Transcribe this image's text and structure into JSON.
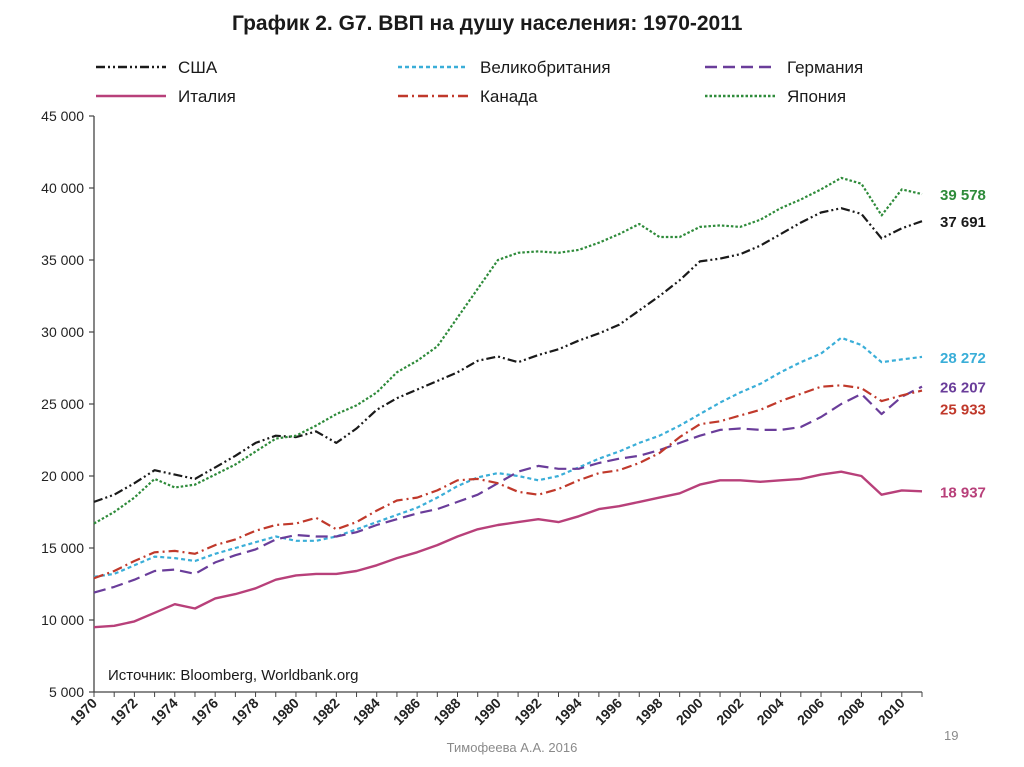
{
  "chart_data": {
    "type": "line",
    "title": "График 2. G7. ВВП на душу населения: 1970-2011",
    "xlabel": "",
    "ylabel": "",
    "xlim": [
      1970,
      2011
    ],
    "ylim": [
      5000,
      45000
    ],
    "y_ticks": [
      {
        "value": 5000,
        "label": "5 000"
      },
      {
        "value": 10000,
        "label": "10 000"
      },
      {
        "value": 15000,
        "label": "15 000"
      },
      {
        "value": 20000,
        "label": "20 000"
      },
      {
        "value": 25000,
        "label": "25 000"
      },
      {
        "value": 30000,
        "label": "30 000"
      },
      {
        "value": 35000,
        "label": "35 000"
      },
      {
        "value": 40000,
        "label": "40 000"
      },
      {
        "value": 45000,
        "label": "45 000"
      }
    ],
    "x_ticks": [
      "1970",
      "1972",
      "1974",
      "1976",
      "1978",
      "1980",
      "1982",
      "1984",
      "1986",
      "1988",
      "1990",
      "1992",
      "1994",
      "1996",
      "1998",
      "2000",
      "2002",
      "2004",
      "2006",
      "2008",
      "2010"
    ],
    "x": [
      1970,
      1971,
      1972,
      1973,
      1974,
      1975,
      1976,
      1977,
      1978,
      1979,
      1980,
      1981,
      1982,
      1983,
      1984,
      1985,
      1986,
      1987,
      1988,
      1989,
      1990,
      1991,
      1992,
      1993,
      1994,
      1995,
      1996,
      1997,
      1998,
      1999,
      2000,
      2001,
      2002,
      2003,
      2004,
      2005,
      2006,
      2007,
      2008,
      2009,
      2010,
      2011
    ],
    "legend_placement": "top",
    "grid": false,
    "source_note": "Источник: Bloomberg, Worldbank.org",
    "series": [
      {
        "name": "США",
        "color": "#1a1a1a",
        "dash": "dashdotdot",
        "end_label": "37 691",
        "values": [
          18200,
          18700,
          19500,
          20400,
          20100,
          19800,
          20600,
          21400,
          22300,
          22800,
          22700,
          23100,
          22300,
          23300,
          24600,
          25400,
          26000,
          26600,
          27200,
          28000,
          28300,
          27900,
          28400,
          28800,
          29400,
          29900,
          30500,
          31500,
          32500,
          33600,
          34900,
          35100,
          35400,
          36000,
          36800,
          37600,
          38300,
          38600,
          38200,
          36500,
          37200,
          37691
        ]
      },
      {
        "name": "Великобритания",
        "color": "#3aaed8",
        "dash": "dotted",
        "end_label": "28 272",
        "values": [
          13000,
          13200,
          13800,
          14400,
          14300,
          14100,
          14600,
          15000,
          15400,
          15800,
          15500,
          15500,
          15800,
          16300,
          16800,
          17300,
          17800,
          18500,
          19300,
          19900,
          20200,
          20000,
          19700,
          20000,
          20600,
          21200,
          21700,
          22300,
          22800,
          23500,
          24300,
          25100,
          25800,
          26400,
          27200,
          27900,
          28500,
          29600,
          29100,
          27900,
          28100,
          28272
        ]
      },
      {
        "name": "Германия",
        "color": "#6a3d9a",
        "dash": "longdash",
        "end_label": "26 207",
        "values": [
          11900,
          12300,
          12800,
          13400,
          13500,
          13200,
          14000,
          14500,
          14900,
          15600,
          15900,
          15800,
          15800,
          16100,
          16600,
          17000,
          17400,
          17700,
          18200,
          18700,
          19500,
          20300,
          20700,
          20500,
          20500,
          20900,
          21200,
          21400,
          21800,
          22300,
          22800,
          23200,
          23300,
          23200,
          23200,
          23400,
          24100,
          25000,
          25700,
          24300,
          25500,
          26207
        ]
      },
      {
        "name": "Италия",
        "color": "#b8407a",
        "dash": "solid",
        "end_label": "18 937",
        "values": [
          9500,
          9600,
          9900,
          10500,
          11100,
          10800,
          11500,
          11800,
          12200,
          12800,
          13100,
          13200,
          13200,
          13400,
          13800,
          14300,
          14700,
          15200,
          15800,
          16300,
          16600,
          16800,
          17000,
          16800,
          17200,
          17700,
          17900,
          18200,
          18500,
          18800,
          19400,
          19700,
          19700,
          19600,
          19700,
          19800,
          20100,
          20300,
          20000,
          18700,
          19000,
          18937
        ]
      },
      {
        "name": "Канада",
        "color": "#c0392b",
        "dash": "dashdot",
        "end_label": "25 933",
        "values": [
          12900,
          13400,
          14100,
          14700,
          14800,
          14600,
          15200,
          15600,
          16200,
          16600,
          16700,
          17100,
          16300,
          16800,
          17600,
          18300,
          18500,
          19000,
          19700,
          19800,
          19500,
          18900,
          18700,
          19100,
          19700,
          20200,
          20400,
          20900,
          21600,
          22700,
          23600,
          23800,
          24200,
          24600,
          25200,
          25700,
          26200,
          26300,
          26100,
          25200,
          25600,
          25933
        ]
      },
      {
        "name": "Япония",
        "color": "#2e8b3a",
        "dash": "densedot",
        "end_label": "39 578",
        "values": [
          16700,
          17500,
          18500,
          19800,
          19200,
          19400,
          20100,
          20800,
          21700,
          22600,
          22800,
          23500,
          24300,
          24900,
          25800,
          27200,
          28000,
          29000,
          31000,
          33000,
          35000,
          35500,
          35600,
          35500,
          35700,
          36200,
          36800,
          37500,
          36600,
          36600,
          37300,
          37400,
          37300,
          37800,
          38600,
          39200,
          39900,
          40700,
          40300,
          38100,
          39900,
          39578
        ]
      }
    ]
  },
  "footer": {
    "author": "Тимофеева А.А. 2016",
    "slide_number": "19"
  }
}
